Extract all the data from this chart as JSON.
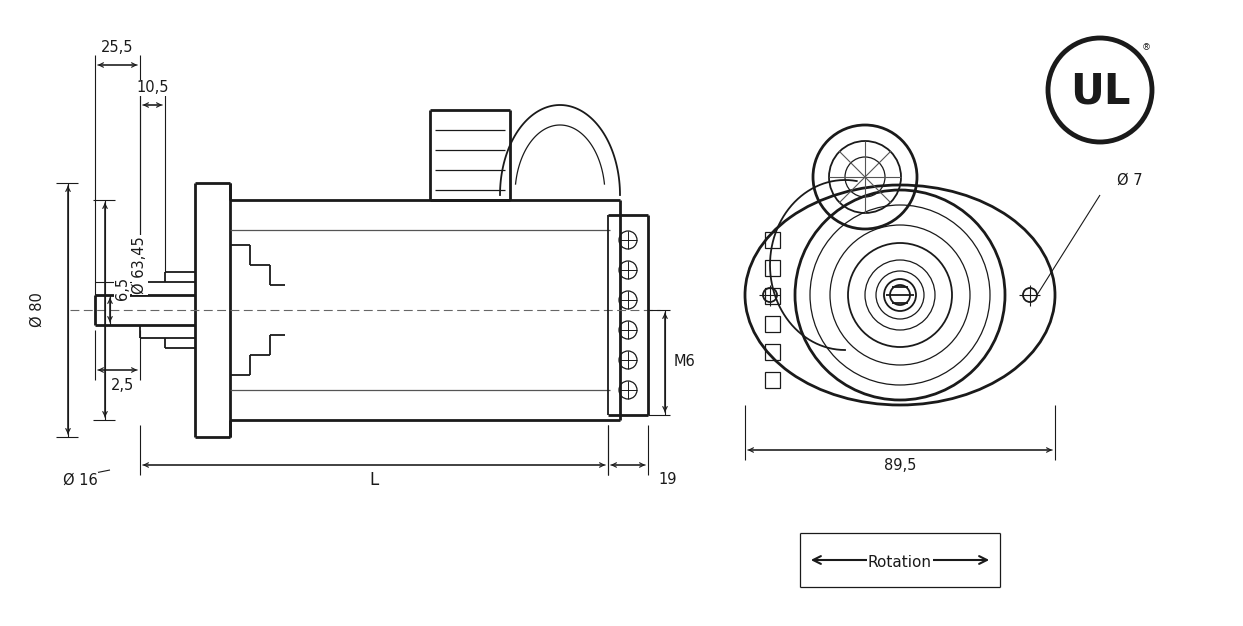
{
  "bg_color": "#ffffff",
  "line_color": "#1a1a1a",
  "figsize": [
    12.43,
    6.26
  ],
  "dpi": 100,
  "annotations": {
    "dim_25_5": "25,5",
    "dim_10_5": "10,5",
    "dim_80": "Ø 80",
    "dim_63_45": "Ø 63,45",
    "dim_16": "Ø 16",
    "dim_6_5": "6,5",
    "dim_2_5": "2,5",
    "dim_L": "L",
    "dim_19": "19",
    "dim_M6": "M6",
    "dim_89_5": "89,5",
    "dim_7": "Ø 7",
    "rotation": "Rotation"
  }
}
